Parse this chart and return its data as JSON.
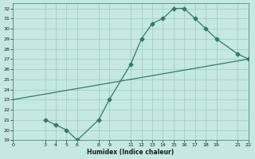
{
  "xlabel": "Humidex (Indice chaleur)",
  "xlim": [
    0,
    22
  ],
  "ylim": [
    19,
    32.5
  ],
  "xticks": [
    0,
    3,
    4,
    5,
    6,
    8,
    9,
    11,
    12,
    13,
    14,
    15,
    16,
    17,
    18,
    19,
    21,
    22
  ],
  "yticks": [
    19,
    20,
    21,
    22,
    23,
    24,
    25,
    26,
    27,
    28,
    29,
    30,
    31,
    32
  ],
  "line1_x": [
    3,
    4,
    5,
    6,
    8,
    9,
    11,
    12,
    13,
    14,
    15,
    16,
    17,
    18,
    19,
    21,
    22
  ],
  "line1_y": [
    21,
    20.5,
    20,
    19,
    21,
    23,
    26.5,
    29,
    30.5,
    31,
    32,
    32,
    31,
    30,
    29,
    27.5,
    27
  ],
  "line2_x": [
    0,
    22
  ],
  "line2_y": [
    23,
    27
  ],
  "line_color": "#2d7d6e",
  "bg_color": "#c5e8e3",
  "grid_color": "#9fc8c2",
  "marker": "D",
  "marker_size": 2.5,
  "linewidth": 0.9,
  "tick_fontsize": 4.5,
  "xlabel_fontsize": 5.5
}
